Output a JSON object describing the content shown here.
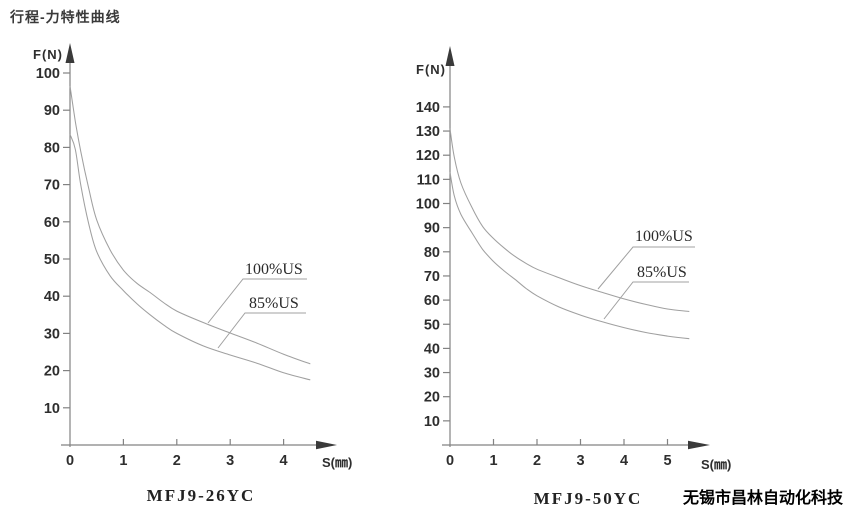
{
  "page": {
    "heading": "行程-力特性曲线",
    "company": "无锡市昌林自动化科技"
  },
  "colors": {
    "curve": "#a0a0a0",
    "axis": "#828282",
    "arrow": "#3a3a3a",
    "tick_text": "#2e2e2e"
  },
  "chart_data": [
    {
      "type": "line",
      "title": "MFJ9-26YC",
      "xlabel": "S(㎜)",
      "ylabel": "F(N)",
      "xlim": [
        0,
        4.8
      ],
      "ylim": [
        0,
        105
      ],
      "x_ticks": [
        0,
        1,
        2,
        3,
        4
      ],
      "y_ticks": [
        10,
        20,
        30,
        40,
        50,
        60,
        70,
        80,
        90,
        100
      ],
      "grid": false,
      "series": [
        {
          "name": "100%US",
          "x": [
            0,
            0.1,
            0.2,
            0.35,
            0.5,
            0.75,
            1,
            1.25,
            1.5,
            1.75,
            2,
            2.5,
            3,
            3.5,
            4,
            4.5
          ],
          "y": [
            96.5,
            87,
            79,
            69,
            60.5,
            52.5,
            47,
            43.5,
            41,
            38.3,
            36,
            32.9,
            30.1,
            27.4,
            24.4,
            21.8
          ]
        },
        {
          "name": "85%US",
          "x": [
            0,
            0.1,
            0.2,
            0.35,
            0.5,
            0.75,
            1,
            1.25,
            1.5,
            1.75,
            2,
            2.5,
            3,
            3.5,
            4,
            4.5
          ],
          "y": [
            83.5,
            79.5,
            70,
            59.5,
            52,
            45.5,
            41.5,
            38,
            35,
            32.3,
            30,
            26.6,
            24.2,
            22,
            19.4,
            17.5
          ]
        }
      ]
    },
    {
      "type": "line",
      "title": "MFJ9-50YC",
      "xlabel": "S(㎜)",
      "ylabel": "F(N)",
      "xlim": [
        0,
        5.9
      ],
      "ylim": [
        0,
        145
      ],
      "x_ticks": [
        0,
        1,
        2,
        3,
        4,
        5
      ],
      "y_ticks": [
        10,
        20,
        30,
        40,
        50,
        60,
        70,
        80,
        90,
        100,
        110,
        120,
        130,
        140
      ],
      "grid": false,
      "series": [
        {
          "name": "100%US",
          "x": [
            0,
            0.1,
            0.25,
            0.5,
            0.75,
            1,
            1.25,
            1.5,
            1.75,
            2,
            2.5,
            3,
            3.5,
            4,
            4.5,
            5,
            5.5
          ],
          "y": [
            131,
            119,
            108.5,
            98.5,
            90.5,
            85.5,
            81.5,
            78,
            75.2,
            72.8,
            69.3,
            66,
            63.2,
            60.5,
            58.2,
            56.3,
            55.3
          ]
        },
        {
          "name": "85%US",
          "x": [
            0,
            0.1,
            0.25,
            0.5,
            0.75,
            1,
            1.25,
            1.5,
            1.75,
            2,
            2.5,
            3,
            3.5,
            4,
            4.5,
            5,
            5.5
          ],
          "y": [
            113,
            103,
            95.5,
            88,
            81,
            76,
            72,
            68.5,
            64.8,
            61.8,
            57.2,
            53.8,
            51,
            48.6,
            46.6,
            45.1,
            44
          ]
        }
      ]
    }
  ]
}
